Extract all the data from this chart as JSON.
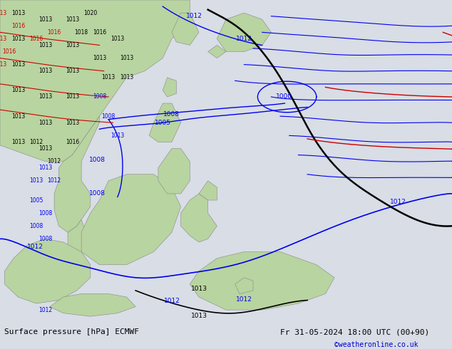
{
  "title_left": "Surface pressure [hPa] ECMWF",
  "title_right": "Fr 31-05-2024 18:00 UTC (00+90)",
  "credit": "©weatheronline.co.uk",
  "ocean_color": "#d8dde6",
  "land_color": "#b8d4a0",
  "land_edge": "#888888",
  "fig_width": 6.34,
  "fig_height": 4.9,
  "dpi": 100,
  "footer_bg": "#e8e8e8",
  "contour_blue": "#0000ee",
  "contour_black": "#000000",
  "contour_red": "#cc0000",
  "label_fontsize": 6.5,
  "footer_fontsize": 8,
  "credit_fontsize": 7,
  "credit_color": "#0000cc"
}
